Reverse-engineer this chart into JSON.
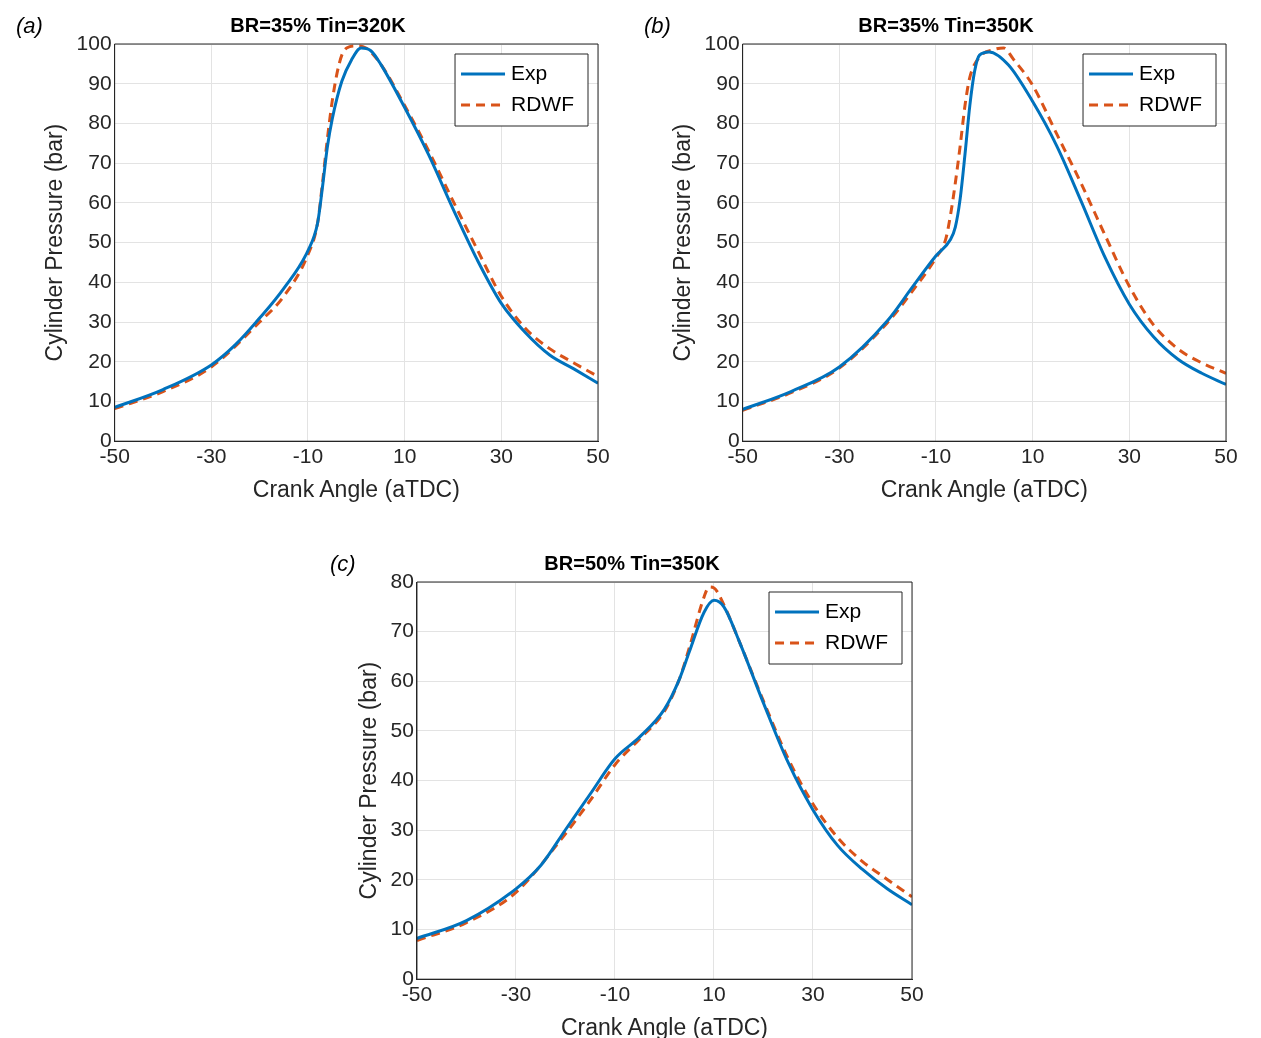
{
  "chart_data": [
    {
      "type": "line",
      "title": "BR=35% Tin=320K",
      "xlabel": "Crank Angle (aTDC)",
      "ylabel": "Cylinder Pressure (bar)",
      "annotations": [
        "(a)"
      ],
      "xlim": [
        -50,
        50
      ],
      "xticks": [
        -50,
        -30,
        -10,
        10,
        30,
        50
      ],
      "ylim": [
        0,
        100
      ],
      "yticks": [
        0,
        10,
        20,
        30,
        40,
        50,
        60,
        70,
        80,
        90,
        100
      ],
      "grid": true,
      "legend": "top right",
      "marker": "none",
      "series": [
        {
          "name": "Exp",
          "color": "#0072bd",
          "line_style": "solid",
          "x": [
            -50,
            -40,
            -30,
            -25,
            -20,
            -15,
            -10,
            -8,
            -7,
            -6,
            -5,
            -3,
            -1,
            1,
            3,
            5,
            10,
            15,
            20,
            25,
            30,
            35,
            40,
            45,
            50
          ],
          "values": [
            8.5,
            13,
            19.2,
            24.3,
            31,
            38.5,
            48,
            55,
            64,
            74,
            81,
            90.6,
            96,
            99,
            98.3,
            95,
            84,
            72,
            58.5,
            45.7,
            34.7,
            27.3,
            21.7,
            18.2,
            14.6
          ]
        },
        {
          "name": "RDWF",
          "color": "#d95319",
          "line_style": "dashed",
          "x": [
            -50,
            -40,
            -30,
            -20,
            -15,
            -10,
            -8,
            -7,
            -6,
            -5,
            -4,
            -3,
            -2,
            0,
            2,
            5,
            10,
            15,
            20,
            25,
            30,
            35,
            40,
            45,
            50
          ],
          "values": [
            8.2,
            12.5,
            18.7,
            30,
            36.5,
            47,
            55,
            65,
            76,
            85.5,
            92.6,
            97.2,
            99,
            99.5,
            99,
            95,
            84.5,
            73,
            60.5,
            48.3,
            36.5,
            28.4,
            23.3,
            19.7,
            16.3
          ]
        }
      ]
    },
    {
      "type": "line",
      "title": "BR=35% Tin=350K",
      "xlabel": "Crank Angle (aTDC)",
      "ylabel": "Cylinder Pressure (bar)",
      "annotations": [
        "(b)"
      ],
      "xlim": [
        -50,
        50
      ],
      "xticks": [
        -50,
        -30,
        -10,
        10,
        30,
        50
      ],
      "ylim": [
        0,
        100
      ],
      "yticks": [
        0,
        10,
        20,
        30,
        40,
        50,
        60,
        70,
        80,
        90,
        100
      ],
      "grid": true,
      "legend": "top right",
      "marker": "none",
      "series": [
        {
          "name": "Exp",
          "color": "#0072bd",
          "line_style": "solid",
          "x": [
            -50,
            -40,
            -30,
            -20,
            -15,
            -10,
            -7,
            -6,
            -5,
            -4,
            -3,
            -2,
            -1,
            1,
            5,
            10,
            15,
            20,
            25,
            30,
            35,
            40,
            45,
            50
          ],
          "values": [
            8,
            12.5,
            18.7,
            30.4,
            38.6,
            46.7,
            50.8,
            53.9,
            61,
            72.2,
            84.5,
            93.2,
            97.2,
            98,
            94.7,
            85.5,
            74.3,
            60.5,
            46.2,
            34.5,
            26.3,
            20.7,
            17.1,
            14.3
          ]
        },
        {
          "name": "RDWF",
          "color": "#d95319",
          "line_style": "dashed",
          "x": [
            -50,
            -40,
            -30,
            -20,
            -15,
            -10,
            -8,
            -7,
            -6,
            -5,
            -4,
            -3,
            -1,
            2,
            4,
            6,
            10,
            15,
            20,
            25,
            30,
            35,
            40,
            45,
            50
          ],
          "values": [
            7.8,
            12.2,
            18.4,
            29.9,
            37.6,
            46.2,
            50.8,
            56.9,
            65,
            74.3,
            84.5,
            91.6,
            96.7,
            98.6,
            99,
            96.2,
            89.6,
            77.3,
            65,
            51.8,
            39,
            29.3,
            23.3,
            19.7,
            17.1
          ]
        }
      ]
    },
    {
      "type": "line",
      "title": "BR=50% Tin=350K",
      "xlabel": "Crank Angle (aTDC)",
      "ylabel": "Cylinder Pressure (bar)",
      "annotations": [
        "(c)"
      ],
      "xlim": [
        -50,
        50
      ],
      "xticks": [
        -50,
        -30,
        -10,
        10,
        30,
        50
      ],
      "ylim": [
        0,
        80
      ],
      "yticks": [
        0,
        10,
        20,
        30,
        40,
        50,
        60,
        70,
        80
      ],
      "grid": true,
      "legend": "top right",
      "marker": "none",
      "series": [
        {
          "name": "Exp",
          "color": "#0072bd",
          "line_style": "solid",
          "x": [
            -50,
            -40,
            -30,
            -25,
            -20,
            -15,
            -10,
            -5,
            0,
            3,
            5,
            8,
            10,
            12,
            15,
            20,
            25,
            30,
            35,
            40,
            45,
            50
          ],
          "values": [
            8.2,
            11.8,
            18.2,
            22.9,
            30.1,
            37.3,
            44.4,
            48.8,
            54.4,
            60.4,
            65.9,
            73.9,
            76.3,
            75,
            68.3,
            55.6,
            43.6,
            34.1,
            26.9,
            22.1,
            18.2,
            15
          ]
        },
        {
          "name": "RDWF",
          "color": "#d95319",
          "line_style": "dashed",
          "x": [
            -50,
            -40,
            -30,
            -20,
            -15,
            -10,
            -5,
            0,
            3,
            5,
            8,
            9,
            10,
            12,
            15,
            20,
            25,
            30,
            35,
            40,
            45,
            50
          ],
          "values": [
            7.8,
            11.4,
            17.5,
            29.3,
            36,
            43.2,
            48.4,
            54,
            60.4,
            66.7,
            77,
            79,
            78.8,
            75.4,
            68.3,
            56,
            44.4,
            35.3,
            28.5,
            23.7,
            20.1,
            16.6
          ]
        }
      ]
    }
  ]
}
